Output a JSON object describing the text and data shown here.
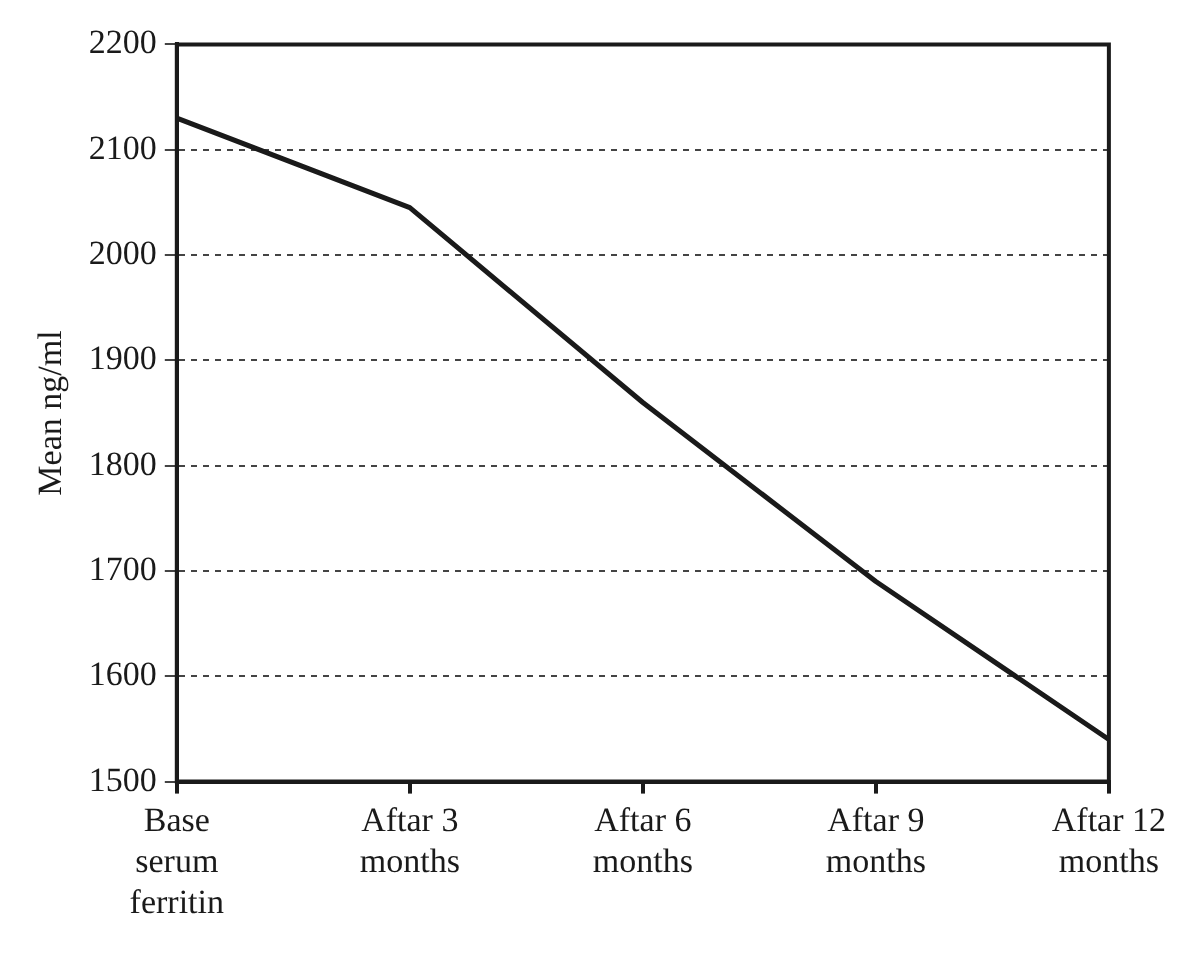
{
  "chart_data": {
    "type": "line",
    "ylabel": "Mean ng/ml",
    "categories": [
      "Base serum ferritin",
      "Aftar 3 months",
      "Aftar 6 months",
      "Aftar 9 months",
      "Aftar 12 months"
    ],
    "series": [
      {
        "color": "#1a1a1a",
        "values": [
          2130,
          2045,
          1860,
          1690,
          1540
        ]
      }
    ],
    "ylim": [
      1500,
      2200
    ],
    "yticks": [
      1500,
      1600,
      1700,
      1800,
      1900,
      2000,
      2100,
      2200
    ],
    "grid": "y",
    "legend": false,
    "marker": "none",
    "line_style": "solid"
  }
}
